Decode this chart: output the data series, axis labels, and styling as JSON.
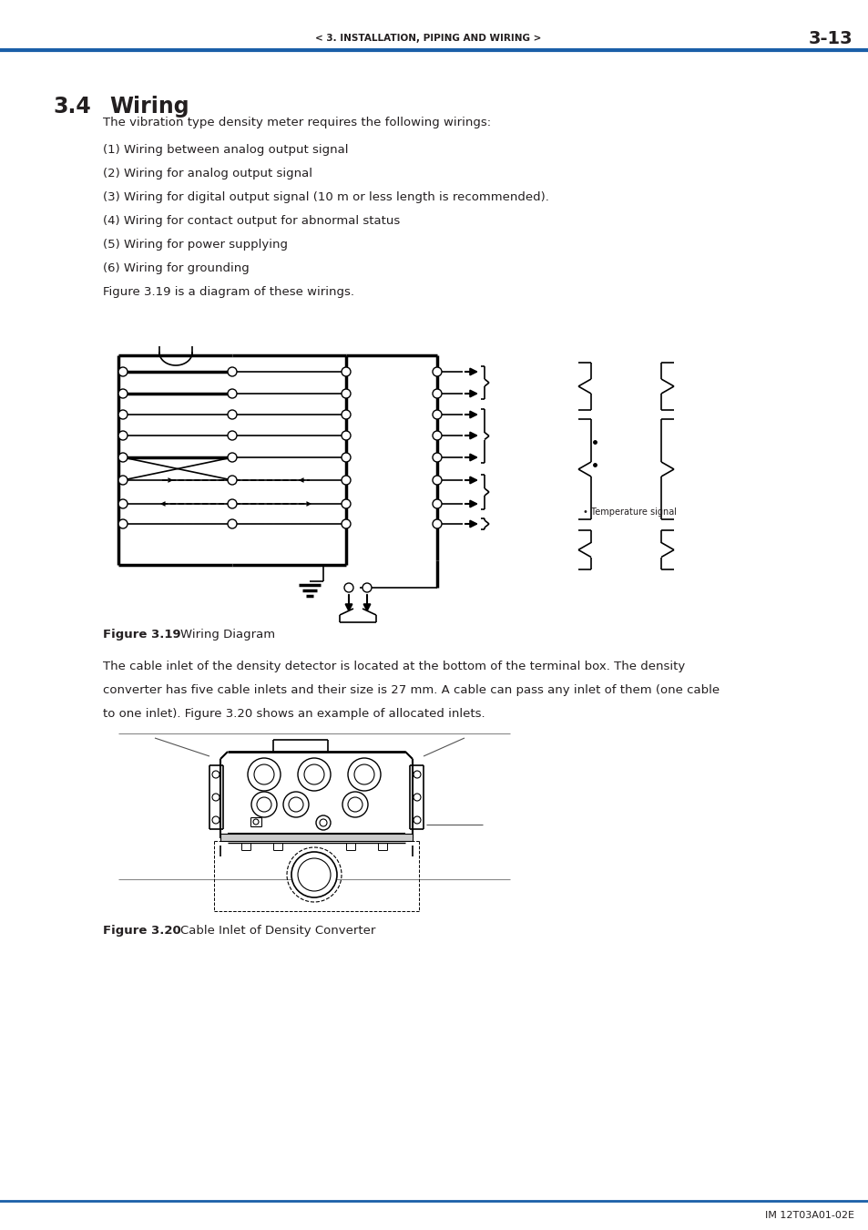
{
  "page_header_left": "< 3. INSTALLATION, PIPING AND WIRING >",
  "page_header_right": "3-13",
  "section_title": "3.4",
  "section_title2": "Wiring",
  "body_text": [
    "The vibration type density meter requires the following wirings:",
    "(1) Wiring between analog output signal",
    "(2) Wiring for analog output signal",
    "(3) Wiring for digital output signal (10 m or less length is recommended).",
    "(4) Wiring for contact output for abnormal status",
    "(5) Wiring for power supplying",
    "(6) Wiring for grounding",
    "Figure 3.19 is a diagram of these wirings."
  ],
  "fig319_caption_bold": "Figure 3.19",
  "fig319_caption_normal": "Wiring Diagram",
  "paragraph2_lines": [
    "The cable inlet of the density detector is located at the bottom of the terminal box. The density",
    "converter has five cable inlets and their size is 27 mm. A cable can pass any inlet of them (one cable",
    "to one inlet). Figure 3.20 shows an example of allocated inlets."
  ],
  "fig320_caption_bold": "Figure 3.20",
  "fig320_caption_normal": "Cable Inlet of Density Converter",
  "footer_text": "IM 12T03A01-02E",
  "header_line_color": "#1a5fa8",
  "background_color": "#ffffff",
  "text_color": "#231f20"
}
